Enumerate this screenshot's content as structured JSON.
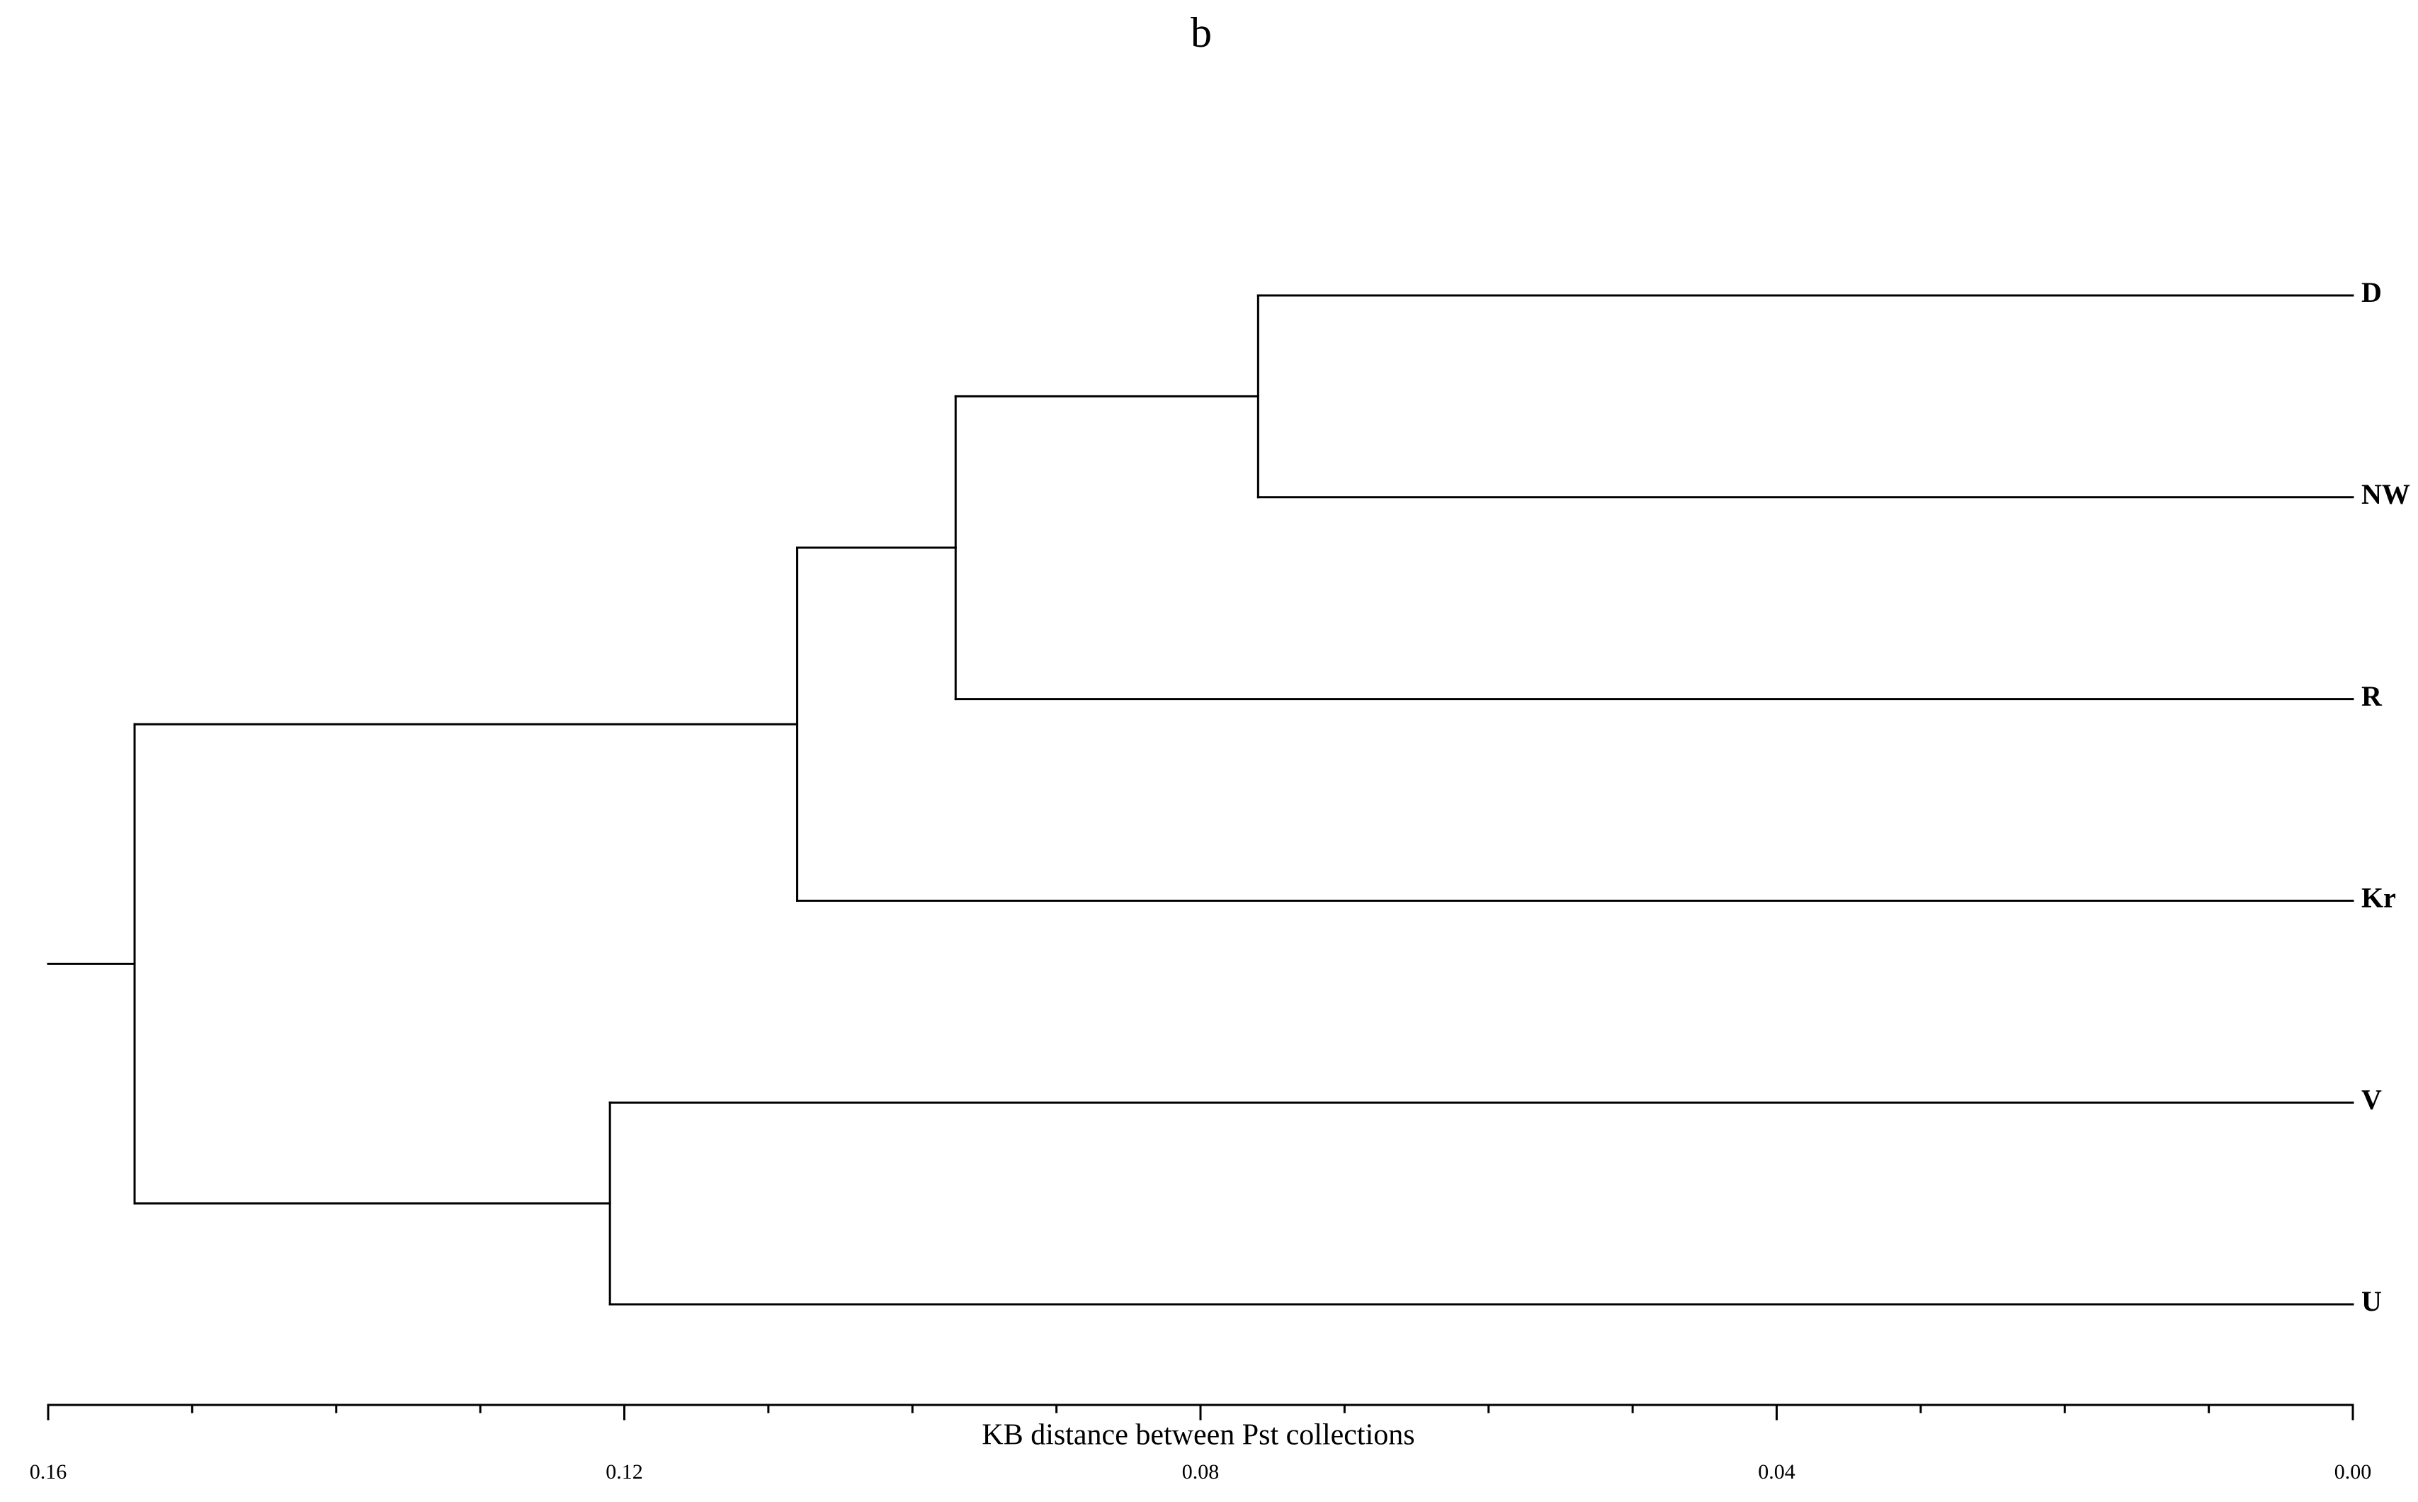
{
  "chart_data": {
    "type": "dendrogram",
    "title": "b",
    "x_label": "KB distance between Pst collections",
    "leaves": [
      "D",
      "NW",
      "R",
      "Kr",
      "V",
      "U"
    ],
    "merges": [
      {
        "children": [
          0,
          1
        ],
        "height": 0.076
      },
      {
        "children": [
          6,
          2
        ],
        "height": 0.097
      },
      {
        "children": [
          7,
          3
        ],
        "height": 0.108
      },
      {
        "children": [
          4,
          5
        ],
        "height": 0.121
      },
      {
        "children": [
          8,
          9
        ],
        "height": 0.154
      }
    ],
    "xlim": [
      0.16,
      0
    ],
    "xticks": [
      0.16,
      0.12,
      0.08,
      0.04,
      {
        "value": 0,
        "label": "0.00"
      }
    ],
    "minor_xticks": [
      0.15,
      0.14,
      0.13,
      0.11,
      0.1,
      0.09,
      0.07,
      0.06,
      0.05,
      0.03,
      0.02,
      0.01
    ],
    "color": "#000000"
  }
}
